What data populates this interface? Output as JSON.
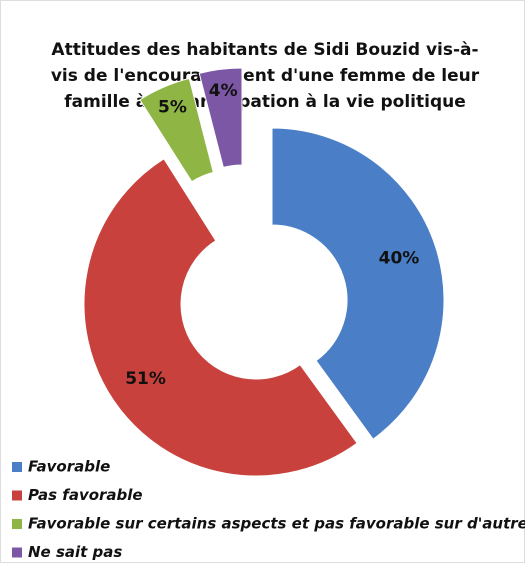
{
  "chart_data": {
    "type": "donut",
    "title": [
      "Attitudes des habitants de Sidi Bouzid vis-à-",
      "vis de l'encouragement d'une femme de leur",
      "famille à la participation à la vie politique"
    ],
    "categories": [
      "Favorable",
      "Pas favorable",
      "Favorable sur certains aspects et pas favorable sur d'autres",
      "Ne sait pas"
    ],
    "values": [
      40,
      51,
      5,
      4
    ],
    "value_labels": [
      "40%",
      "51%",
      "5%",
      "4%"
    ],
    "colors": [
      "#4a7fc7",
      "#c9413d",
      "#8fb545",
      "#7b57a6"
    ],
    "legend": "bottom-left"
  }
}
